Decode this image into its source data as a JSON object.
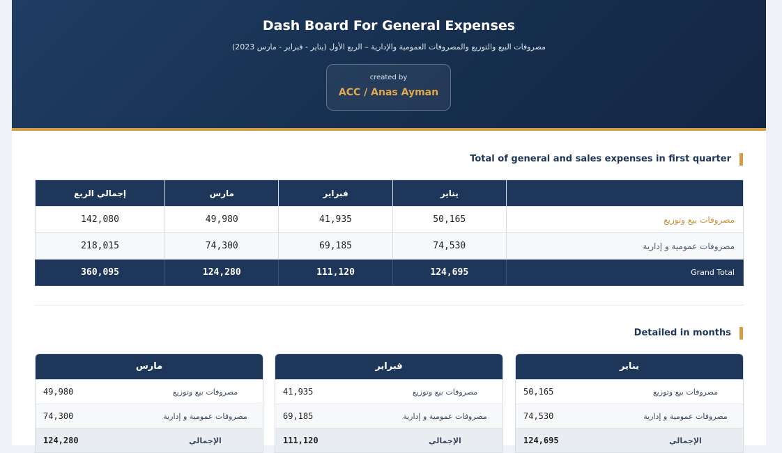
{
  "header": {
    "title": "Dash Board For General Expenses",
    "subtitle": "مصروفات البيع والتوزيع والمصروفات العمومية والإدارية – الربع الأول (يناير - فبراير - مارس 2023)",
    "created_label": "created by",
    "author": "ACC / Anas Ayman"
  },
  "summary": {
    "title": "Total of general and sales expenses in first quarter",
    "columns": [
      "يناير",
      "فبراير",
      "مارس",
      "إجمالي الربع"
    ],
    "rows": [
      {
        "label": "مصروفات بيع وتوزيع",
        "values": [
          "50,165",
          "41,935",
          "49,980",
          "142,080"
        ]
      },
      {
        "label": "مصروفات عمومية و إدارية",
        "values": [
          "74,530",
          "69,185",
          "74,300",
          "218,015"
        ]
      }
    ],
    "total": {
      "label": "Grand Total",
      "values": [
        "124,695",
        "111,120",
        "124,280",
        "360,095"
      ]
    }
  },
  "months": {
    "title": "Detailed in months",
    "cards": [
      {
        "name": "يناير",
        "rows": [
          {
            "label": "مصروفات بيع وتوزيع",
            "value": "50,165"
          },
          {
            "label": "مصروفات عمومية و إدارية",
            "value": "74,530"
          }
        ],
        "total_label": "الإجمالي",
        "total": "124,695"
      },
      {
        "name": "فبراير",
        "rows": [
          {
            "label": "مصروفات بيع وتوزيع",
            "value": "41,935"
          },
          {
            "label": "مصروفات عمومية و إدارية",
            "value": "69,185"
          }
        ],
        "total_label": "الإجمالي",
        "total": "111,120"
      },
      {
        "name": "مارس",
        "rows": [
          {
            "label": "مصروفات بيع وتوزيع",
            "value": "49,980"
          },
          {
            "label": "مصروفات عمومية و إدارية",
            "value": "74,300"
          }
        ],
        "total_label": "الإجمالي",
        "total": "124,280"
      }
    ]
  }
}
